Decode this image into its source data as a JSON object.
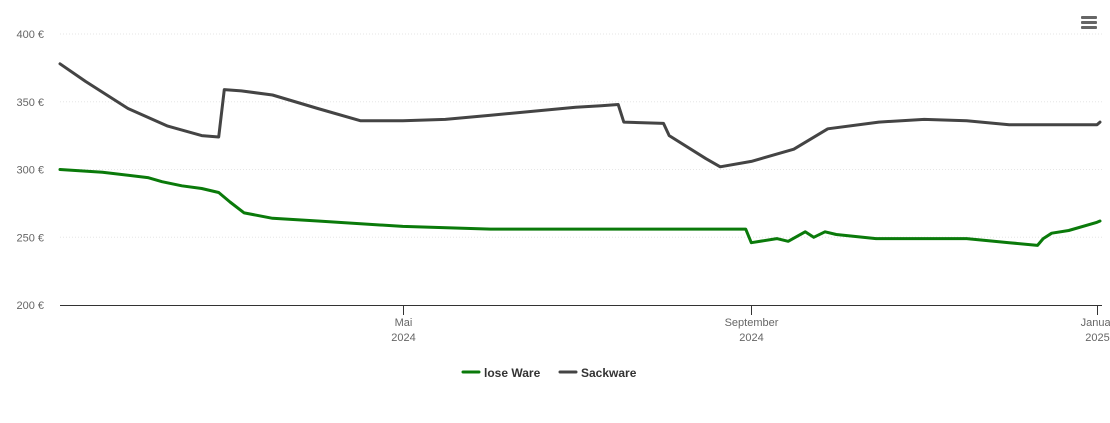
{
  "chart_data": {
    "type": "line",
    "title": "",
    "xlabel": "",
    "ylabel": "",
    "ylim": [
      200,
      400
    ],
    "xlim": [
      "2024-01-01",
      "2025-01-01"
    ],
    "y_ticks": [
      {
        "value": 200,
        "label": "200 €"
      },
      {
        "value": 250,
        "label": "250 €"
      },
      {
        "value": 300,
        "label": "300 €"
      },
      {
        "value": 350,
        "label": "350 €"
      },
      {
        "value": 400,
        "label": "400 €"
      }
    ],
    "x_ticks": [
      {
        "date": "2024-05-01",
        "line1": "Mai",
        "line2": "2024"
      },
      {
        "date": "2024-09-01",
        "line1": "September",
        "line2": "2024"
      },
      {
        "date": "2025-01-01",
        "line1": "Januar",
        "line2": "2025"
      }
    ],
    "grid": true,
    "legend_position": "bottom-center",
    "series": [
      {
        "name": "lose Ware",
        "color": "#0a7a0a",
        "points": [
          [
            "2024-01-01",
            300
          ],
          [
            "2024-01-16",
            298
          ],
          [
            "2024-02-01",
            294
          ],
          [
            "2024-02-06",
            291
          ],
          [
            "2024-02-13",
            288
          ],
          [
            "2024-02-20",
            286
          ],
          [
            "2024-02-26",
            283
          ],
          [
            "2024-03-01",
            276
          ],
          [
            "2024-03-06",
            268
          ],
          [
            "2024-03-16",
            264
          ],
          [
            "2024-04-01",
            262
          ],
          [
            "2024-05-01",
            258
          ],
          [
            "2024-06-01",
            256
          ],
          [
            "2024-07-01",
            256
          ],
          [
            "2024-08-01",
            256
          ],
          [
            "2024-08-30",
            256
          ],
          [
            "2024-09-01",
            246
          ],
          [
            "2024-09-10",
            249
          ],
          [
            "2024-09-14",
            247
          ],
          [
            "2024-09-20",
            254
          ],
          [
            "2024-09-23",
            250
          ],
          [
            "2024-09-27",
            254
          ],
          [
            "2024-10-01",
            252
          ],
          [
            "2024-10-15",
            249
          ],
          [
            "2024-11-01",
            249
          ],
          [
            "2024-11-16",
            249
          ],
          [
            "2024-12-01",
            246
          ],
          [
            "2024-12-11",
            244
          ],
          [
            "2024-12-13",
            249
          ],
          [
            "2024-12-16",
            253
          ],
          [
            "2024-12-22",
            255
          ],
          [
            "2025-01-01",
            261
          ],
          [
            "2025-01-05",
            262
          ]
        ]
      },
      {
        "name": "Sackware",
        "color": "#444444",
        "points": [
          [
            "2024-01-01",
            378
          ],
          [
            "2024-01-10",
            365
          ],
          [
            "2024-01-25",
            345
          ],
          [
            "2024-02-08",
            332
          ],
          [
            "2024-02-20",
            325
          ],
          [
            "2024-02-26",
            324
          ],
          [
            "2024-02-28",
            359
          ],
          [
            "2024-03-05",
            358
          ],
          [
            "2024-03-16",
            355
          ],
          [
            "2024-04-01",
            345
          ],
          [
            "2024-04-16",
            336
          ],
          [
            "2024-05-01",
            336
          ],
          [
            "2024-05-16",
            337
          ],
          [
            "2024-06-01",
            340
          ],
          [
            "2024-06-16",
            343
          ],
          [
            "2024-07-01",
            346
          ],
          [
            "2024-07-10",
            347
          ],
          [
            "2024-07-16",
            348
          ],
          [
            "2024-07-18",
            335
          ],
          [
            "2024-08-01",
            334
          ],
          [
            "2024-08-03",
            325
          ],
          [
            "2024-08-16",
            308
          ],
          [
            "2024-08-21",
            302
          ],
          [
            "2024-09-01",
            306
          ],
          [
            "2024-09-16",
            315
          ],
          [
            "2024-09-28",
            330
          ],
          [
            "2024-10-16",
            335
          ],
          [
            "2024-11-01",
            337
          ],
          [
            "2024-11-16",
            336
          ],
          [
            "2024-12-01",
            333
          ],
          [
            "2024-12-16",
            333
          ],
          [
            "2025-01-01",
            333
          ],
          [
            "2025-01-05",
            335
          ]
        ]
      }
    ]
  },
  "toolbar": {
    "menu_icon": "hamburger-menu-icon"
  }
}
